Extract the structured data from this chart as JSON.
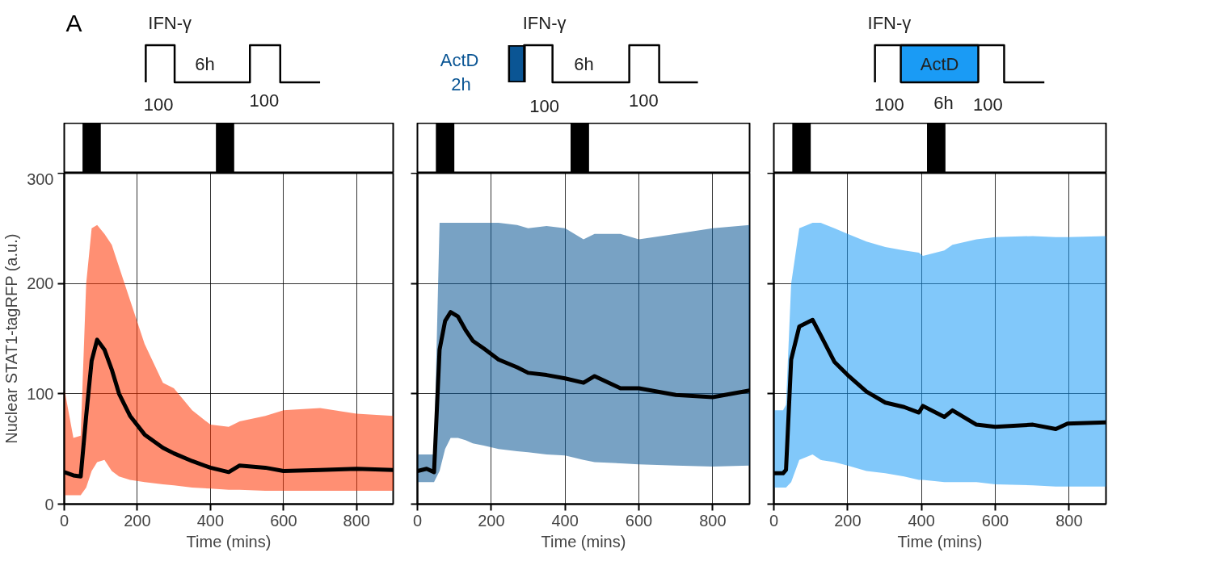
{
  "chart_data": [
    {
      "type": "line",
      "color": "#ff3300",
      "xlabel": "Time (mins)",
      "ylabel": "Nuclear STAT1-tagRFP (a.u.)",
      "xlim": [
        0,
        900
      ],
      "ylim": [
        0,
        300
      ],
      "xticks": [
        0,
        200,
        400,
        600,
        800
      ],
      "yticks": [
        0,
        100,
        200,
        300
      ],
      "grid": true,
      "line_style": "solid",
      "x": [
        0,
        25,
        45,
        60,
        75,
        90,
        110,
        130,
        150,
        180,
        220,
        270,
        300,
        350,
        400,
        450,
        480,
        550,
        600,
        700,
        800,
        900
      ],
      "series": [
        {
          "color": "#000000",
          "values": [
            29,
            26,
            25,
            80,
            130,
            149,
            140,
            122,
            100,
            80,
            63,
            51,
            46,
            39,
            33,
            29,
            35,
            33,
            30,
            31,
            32,
            31
          ],
          "lower": [
            8,
            8,
            8,
            15,
            30,
            38,
            40,
            30,
            25,
            22,
            20,
            18,
            17,
            15,
            14,
            13,
            13,
            12,
            12,
            12,
            12,
            12
          ],
          "upper": [
            105,
            60,
            62,
            200,
            250,
            253,
            245,
            235,
            215,
            185,
            145,
            110,
            105,
            85,
            72,
            70,
            75,
            80,
            85,
            87,
            82,
            80
          ]
        }
      ],
      "annotations": [
        "A",
        "IFN-γ",
        "6h",
        "100",
        "100"
      ]
    },
    {
      "type": "line",
      "color": "#0a5594",
      "xlabel": "Time (mins)",
      "xlim": [
        0,
        900
      ],
      "ylim": [
        0,
        300
      ],
      "xticks": [
        0,
        200,
        400,
        600,
        800
      ],
      "yticks": [
        0,
        100,
        200,
        300
      ],
      "grid": true,
      "tick_labels": "x",
      "line_style": "solid",
      "x": [
        0,
        25,
        45,
        60,
        75,
        90,
        110,
        130,
        150,
        180,
        220,
        270,
        300,
        350,
        400,
        450,
        480,
        550,
        600,
        700,
        800,
        900
      ],
      "series": [
        {
          "color": "#000000",
          "values": [
            30,
            32,
            29,
            140,
            166,
            174,
            170,
            158,
            148,
            141,
            131,
            124,
            119,
            117,
            114,
            110,
            116,
            105,
            105,
            99,
            97,
            103
          ],
          "lower": [
            20,
            20,
            20,
            30,
            50,
            60,
            60,
            58,
            55,
            53,
            50,
            48,
            47,
            45,
            44,
            40,
            38,
            37,
            36,
            35,
            34,
            35
          ],
          "upper": [
            45,
            45,
            45,
            255,
            255,
            255,
            255,
            255,
            255,
            255,
            255,
            253,
            250,
            252,
            250,
            240,
            245,
            245,
            240,
            245,
            250,
            253
          ]
        }
      ],
      "annotations": [
        "IFN-γ",
        "ActD",
        "2h",
        "6h",
        "100",
        "100"
      ]
    },
    {
      "type": "line",
      "color": "#1a9bf5",
      "xlabel": "Time (mins)",
      "xlim": [
        0,
        900
      ],
      "ylim": [
        0,
        300
      ],
      "xticks": [
        0,
        200,
        400,
        600,
        800
      ],
      "yticks": [
        0,
        100,
        200,
        300
      ],
      "grid": true,
      "tick_labels": "x",
      "line_style": "solid",
      "x": [
        0,
        25,
        33,
        47,
        69,
        105,
        127,
        164,
        200,
        251,
        302,
        353,
        393,
        404,
        462,
        484,
        549,
        600,
        702,
        764,
        796,
        900
      ],
      "series": [
        {
          "color": "#000000",
          "values": [
            28,
            28,
            31,
            131,
            161,
            167,
            153,
            129,
            117,
            102,
            92,
            88,
            83,
            89,
            79,
            85,
            72,
            70,
            72,
            68,
            73,
            74
          ],
          "lower": [
            15,
            15,
            15,
            20,
            40,
            45,
            40,
            38,
            35,
            30,
            28,
            25,
            22,
            22,
            20,
            20,
            20,
            18,
            17,
            16,
            16,
            16
          ],
          "upper": [
            85,
            85,
            90,
            200,
            250,
            255,
            255,
            250,
            245,
            238,
            233,
            230,
            228,
            225,
            230,
            235,
            240,
            242,
            243,
            242,
            242,
            243
          ]
        }
      ],
      "annotations": [
        "IFN-γ",
        "ActD",
        "100",
        "6h",
        "100"
      ]
    }
  ]
}
